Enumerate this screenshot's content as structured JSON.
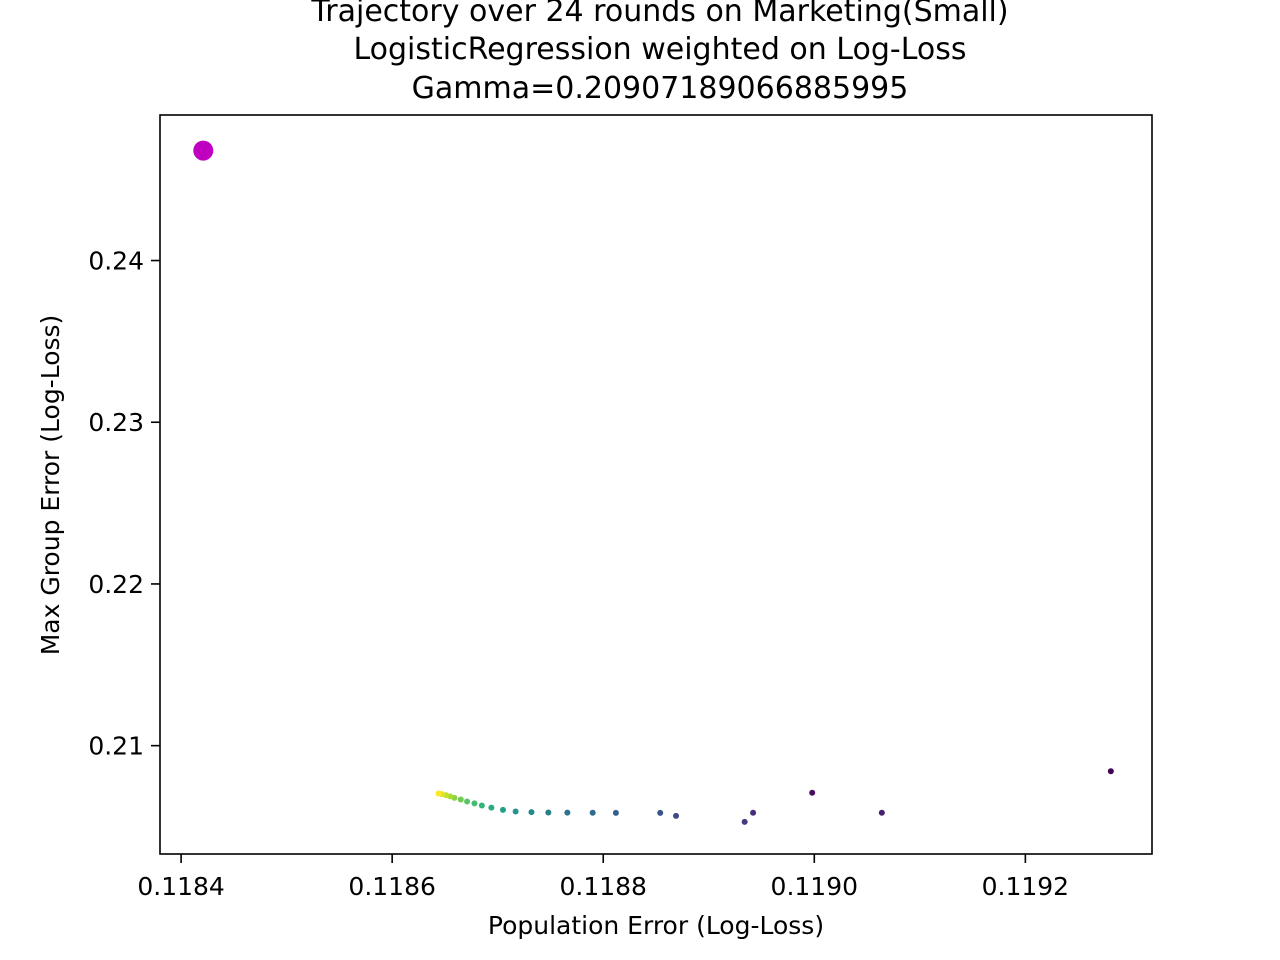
{
  "chart_data": {
    "type": "scatter",
    "title": [
      "Trajectory over 24 rounds on Marketing(Small)",
      "LogisticRegression weighted on Log-Loss",
      "Gamma=0.20907189066885995"
    ],
    "xlabel": "Population Error (Log-Loss)",
    "ylabel": "Max Group Error (Log-Loss)",
    "xlim": [
      0.11838,
      0.11932
    ],
    "ylim": [
      0.2033,
      0.249
    ],
    "xticks": [
      {
        "value": 0.1184,
        "label": "0.1184"
      },
      {
        "value": 0.1186,
        "label": "0.1186"
      },
      {
        "value": 0.1188,
        "label": "0.1188"
      },
      {
        "value": 0.119,
        "label": "0.1190"
      },
      {
        "value": 0.1192,
        "label": "0.1192"
      }
    ],
    "yticks": [
      {
        "value": 0.21,
        "label": "0.21"
      },
      {
        "value": 0.22,
        "label": "0.22"
      },
      {
        "value": 0.23,
        "label": "0.23"
      },
      {
        "value": 0.24,
        "label": "0.24"
      }
    ],
    "grid": false,
    "colormap": "viridis",
    "highlight_point": {
      "x": 0.118421,
      "y": 0.2468,
      "color": "#c000c0"
    },
    "points": [
      {
        "x": 0.119281,
        "y": 0.20842
      },
      {
        "x": 0.118998,
        "y": 0.20709
      },
      {
        "x": 0.119064,
        "y": 0.20585
      },
      {
        "x": 0.118942,
        "y": 0.20585
      },
      {
        "x": 0.118934,
        "y": 0.20529
      },
      {
        "x": 0.118869,
        "y": 0.20566
      },
      {
        "x": 0.118854,
        "y": 0.20584
      },
      {
        "x": 0.118812,
        "y": 0.20584
      },
      {
        "x": 0.11879,
        "y": 0.20585
      },
      {
        "x": 0.118766,
        "y": 0.20586
      },
      {
        "x": 0.118748,
        "y": 0.20587
      },
      {
        "x": 0.118732,
        "y": 0.20589
      },
      {
        "x": 0.118717,
        "y": 0.20593
      },
      {
        "x": 0.118705,
        "y": 0.20603
      },
      {
        "x": 0.118694,
        "y": 0.20617
      },
      {
        "x": 0.118685,
        "y": 0.2063
      },
      {
        "x": 0.118678,
        "y": 0.20643
      },
      {
        "x": 0.118671,
        "y": 0.20655
      },
      {
        "x": 0.118665,
        "y": 0.20667
      },
      {
        "x": 0.118659,
        "y": 0.20677
      },
      {
        "x": 0.118655,
        "y": 0.20686
      },
      {
        "x": 0.118651,
        "y": 0.20694
      },
      {
        "x": 0.118647,
        "y": 0.207
      },
      {
        "x": 0.118644,
        "y": 0.20704
      }
    ]
  }
}
